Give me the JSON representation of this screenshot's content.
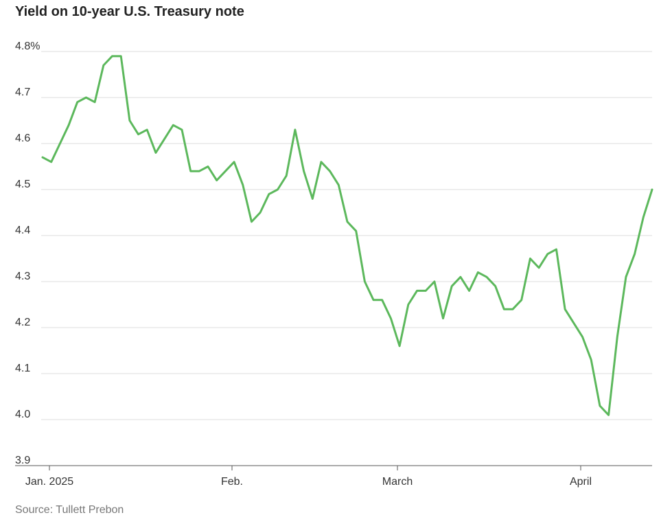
{
  "chart_data": {
    "type": "line",
    "title": "Yield on 10-year U.S. Treasury note",
    "source": "Source: Tullett Prebon",
    "xlabel": "",
    "ylabel": "",
    "ylim": [
      3.9,
      4.8
    ],
    "yticks": [
      {
        "value": 4.8,
        "label": "4.8%"
      },
      {
        "value": 4.7,
        "label": "4.7"
      },
      {
        "value": 4.6,
        "label": "4.6"
      },
      {
        "value": 4.5,
        "label": "4.5"
      },
      {
        "value": 4.4,
        "label": "4.4"
      },
      {
        "value": 4.3,
        "label": "4.3"
      },
      {
        "value": 4.2,
        "label": "4.2"
      },
      {
        "value": 4.1,
        "label": "4.1"
      },
      {
        "value": 4.0,
        "label": "4.0"
      },
      {
        "value": 3.9,
        "label": "3.9"
      }
    ],
    "xticks": [
      {
        "index": 0,
        "label": "Jan. 2025"
      },
      {
        "index": 21,
        "label": "Feb."
      },
      {
        "index": 40,
        "label": "March"
      },
      {
        "index": 61,
        "label": "April"
      }
    ],
    "grid": true,
    "line_color": "#5cb85c",
    "series": [
      {
        "values": [
          4.57,
          4.56,
          4.6,
          4.64,
          4.69,
          4.7,
          4.69,
          4.77,
          4.79,
          4.79,
          4.65,
          4.62,
          4.63,
          4.58,
          4.61,
          4.64,
          4.63,
          4.54,
          4.54,
          4.55,
          4.52,
          4.54,
          4.56,
          4.51,
          4.43,
          4.45,
          4.49,
          4.5,
          4.53,
          4.63,
          4.54,
          4.48,
          4.56,
          4.54,
          4.51,
          4.43,
          4.41,
          4.3,
          4.26,
          4.26,
          4.22,
          4.16,
          4.25,
          4.28,
          4.28,
          4.3,
          4.22,
          4.29,
          4.31,
          4.28,
          4.32,
          4.31,
          4.29,
          4.24,
          4.24,
          4.26,
          4.35,
          4.33,
          4.36,
          4.37,
          4.24,
          4.21,
          4.18,
          4.13,
          4.03,
          4.01,
          4.18,
          4.31,
          4.36,
          4.44,
          4.5
        ]
      }
    ]
  }
}
